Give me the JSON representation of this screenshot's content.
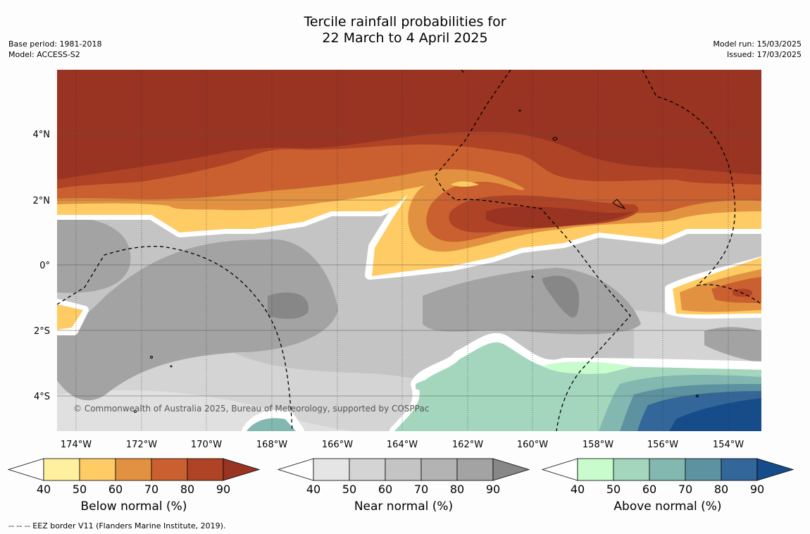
{
  "title": {
    "line1": "Tercile rainfall probabilities for",
    "line2": "22 March to 4 April 2025"
  },
  "meta": {
    "base_period": "Base period: 1981-2018",
    "model": "Model: ACCESS-S2",
    "model_run": "Model run: 15/03/2025",
    "issued": "Issued: 17/03/2025"
  },
  "map": {
    "lon_labels": [
      "174°W",
      "172°W",
      "170°W",
      "168°W",
      "166°W",
      "164°W",
      "162°W",
      "160°W",
      "158°W",
      "156°W",
      "154°W"
    ],
    "lat_labels": [
      "4°N",
      "2°N",
      "0°",
      "2°S",
      "4°S"
    ],
    "copyright": "© Commonwealth of Australia 2025, Bureau of Meteorology, supported by COSPPac"
  },
  "colorbars": [
    {
      "label": "Below normal (%)",
      "ticks": [
        "40",
        "50",
        "60",
        "70",
        "80",
        "90"
      ],
      "colors": [
        "#fff0a0",
        "#fecb64",
        "#e1913f",
        "#ca5f30",
        "#ae4325",
        "#993322"
      ]
    },
    {
      "label": "Near normal (%)",
      "ticks": [
        "40",
        "50",
        "60",
        "70",
        "80",
        "90"
      ],
      "colors": [
        "#e5e5e5",
        "#d4d4d4",
        "#c4c4c4",
        "#b3b3b3",
        "#a3a3a3",
        "#878787"
      ]
    },
    {
      "label": "Above normal (%)",
      "ticks": [
        "40",
        "50",
        "60",
        "70",
        "80",
        "90"
      ],
      "colors": [
        "#c8fccd",
        "#a3d6bd",
        "#83b8b1",
        "#5d93a1",
        "#336699",
        "#154c89"
      ]
    }
  ],
  "footnote": "--  --  -- EEZ border V11 (Flanders Marine Institute, 2019)."
}
